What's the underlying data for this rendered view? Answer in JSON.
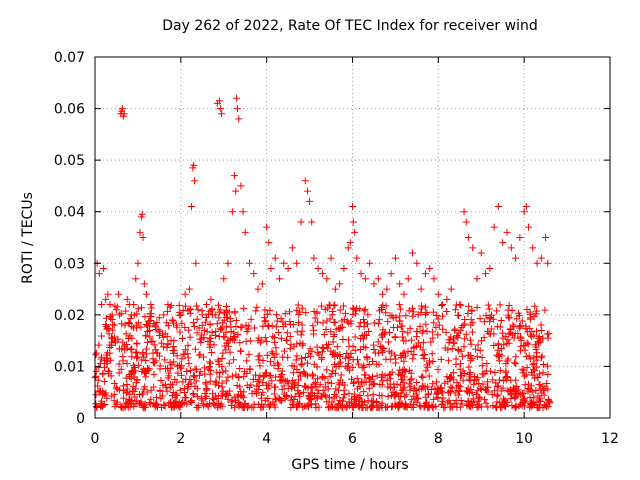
{
  "chart_data": {
    "type": "scatter",
    "title": "Day 262 of 2022, Rate Of TEC Index for receiver wind",
    "xlabel": "GPS time / hours",
    "ylabel": "ROTI / TECUs",
    "xlim": [
      0,
      12
    ],
    "ylim": [
      0,
      0.07
    ],
    "x_ticks": [
      "0",
      "2",
      "4",
      "6",
      "8",
      "10",
      "12"
    ],
    "y_ticks": [
      "0",
      "0.01",
      "0.02",
      "0.03",
      "0.04",
      "0.05",
      "0.06",
      "0.07"
    ],
    "grid": true,
    "legend": "none",
    "marker": "+",
    "color": "#ff0000",
    "series": [
      {
        "x": [
          0.05,
          0.1,
          0.15,
          0.2,
          0.25,
          0.3,
          0.35,
          0.4,
          0.45,
          0.5,
          0.55,
          0.6,
          0.62,
          0.64,
          0.66,
          0.68,
          0.7,
          0.75,
          0.8,
          0.85,
          0.9,
          0.95,
          1.0,
          1.05,
          1.08,
          1.1,
          1.12,
          1.15,
          1.2,
          1.3,
          1.4,
          1.5,
          1.6,
          1.7,
          1.8,
          1.9,
          2.0,
          2.1,
          2.2,
          2.25,
          2.28,
          2.3,
          2.32,
          2.35,
          2.4,
          2.5,
          2.6,
          2.7,
          2.8,
          2.85,
          2.9,
          2.92,
          2.95,
          3.0,
          3.1,
          3.2,
          3.25,
          3.28,
          3.3,
          3.32,
          3.35,
          3.4,
          3.45,
          3.5,
          3.6,
          3.7,
          3.8,
          3.9,
          4.0,
          4.05,
          4.1,
          4.2,
          4.3,
          4.4,
          4.5,
          4.6,
          4.7,
          4.8,
          4.9,
          4.95,
          5.0,
          5.05,
          5.1,
          5.2,
          5.3,
          5.4,
          5.5,
          5.6,
          5.7,
          5.8,
          5.9,
          5.95,
          6.0,
          6.02,
          6.05,
          6.1,
          6.2,
          6.3,
          6.4,
          6.5,
          6.6,
          6.7,
          6.8,
          6.9,
          7.0,
          7.1,
          7.2,
          7.3,
          7.4,
          7.5,
          7.6,
          7.7,
          7.8,
          7.9,
          8.0,
          8.1,
          8.2,
          8.3,
          8.4,
          8.5,
          8.6,
          8.65,
          8.7,
          8.8,
          8.9,
          9.0,
          9.1,
          9.2,
          9.3,
          9.4,
          9.5,
          9.6,
          9.7,
          9.8,
          9.9,
          10.0,
          10.05,
          10.1,
          10.2,
          10.3,
          10.4,
          10.5,
          10.55
        ],
        "y": [
          0.03,
          0.028,
          0.022,
          0.029,
          0.023,
          0.024,
          0.022,
          0.02,
          0.018,
          0.021,
          0.024,
          0.059,
          0.0595,
          0.06,
          0.0585,
          0.059,
          0.018,
          0.023,
          0.022,
          0.02,
          0.022,
          0.027,
          0.03,
          0.036,
          0.039,
          0.0395,
          0.035,
          0.026,
          0.024,
          0.022,
          0.018,
          0.016,
          0.02,
          0.022,
          0.019,
          0.018,
          0.02,
          0.024,
          0.025,
          0.041,
          0.0485,
          0.049,
          0.046,
          0.03,
          0.021,
          0.02,
          0.022,
          0.023,
          0.02,
          0.061,
          0.0615,
          0.06,
          0.059,
          0.027,
          0.03,
          0.04,
          0.047,
          0.044,
          0.062,
          0.06,
          0.058,
          0.045,
          0.04,
          0.036,
          0.03,
          0.028,
          0.025,
          0.026,
          0.037,
          0.034,
          0.029,
          0.031,
          0.027,
          0.03,
          0.029,
          0.033,
          0.03,
          0.038,
          0.046,
          0.044,
          0.042,
          0.038,
          0.031,
          0.029,
          0.028,
          0.027,
          0.031,
          0.025,
          0.026,
          0.029,
          0.033,
          0.034,
          0.041,
          0.038,
          0.036,
          0.031,
          0.028,
          0.027,
          0.03,
          0.026,
          0.027,
          0.024,
          0.025,
          0.028,
          0.031,
          0.026,
          0.024,
          0.027,
          0.032,
          0.03,
          0.025,
          0.028,
          0.029,
          0.027,
          0.024,
          0.022,
          0.023,
          0.025,
          0.021,
          0.022,
          0.04,
          0.038,
          0.035,
          0.033,
          0.027,
          0.032,
          0.028,
          0.029,
          0.037,
          0.041,
          0.034,
          0.036,
          0.033,
          0.031,
          0.035,
          0.04,
          0.041,
          0.037,
          0.033,
          0.03,
          0.031,
          0.035,
          0.03
        ]
      }
    ],
    "dense_band": {
      "x_range": [
        0,
        10.6
      ],
      "y_range": [
        0.002,
        0.022
      ],
      "note_count": 1800
    }
  }
}
